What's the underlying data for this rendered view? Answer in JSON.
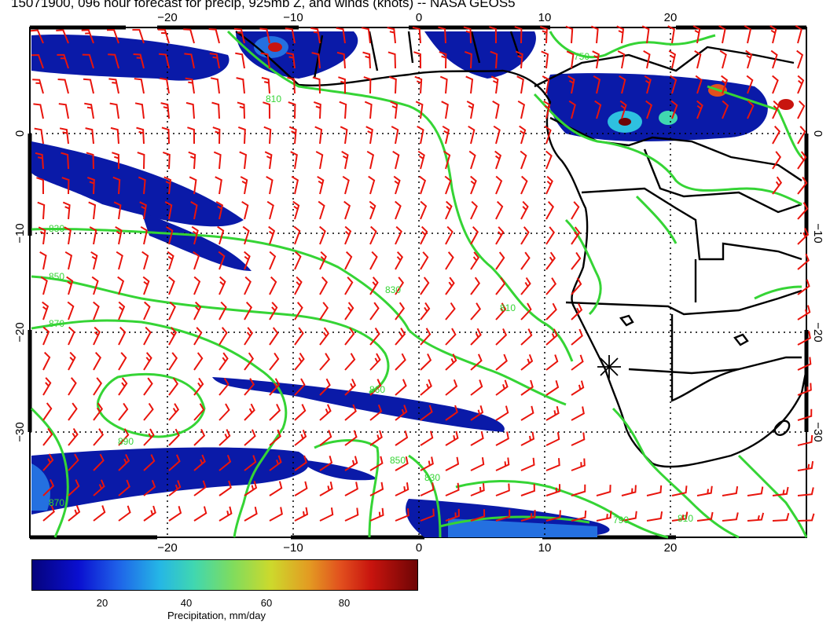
{
  "title": "15071900, 096 hour forecast for precip, 925mb Z, and winds (knots) -- NASA GEOS5",
  "map": {
    "lon_labels": [
      "−20",
      "−10",
      "0",
      "10",
      "20"
    ],
    "lat_labels": [
      "0",
      "−10",
      "−20",
      "−30"
    ],
    "contour_labels": [
      "810",
      "830",
      "850",
      "870",
      "890",
      "860",
      "830",
      "810",
      "870",
      "850",
      "830",
      "810",
      "790",
      "750"
    ],
    "colors": {
      "wind_barbs": "#e8140c",
      "contours": "#35d435",
      "precip_low": "#05037c",
      "precip_high": "#6e0505",
      "coastline": "#000000"
    }
  },
  "colorbar": {
    "ticks": [
      "20",
      "40",
      "60",
      "80"
    ],
    "label": "Precipitation, mm/day"
  }
}
